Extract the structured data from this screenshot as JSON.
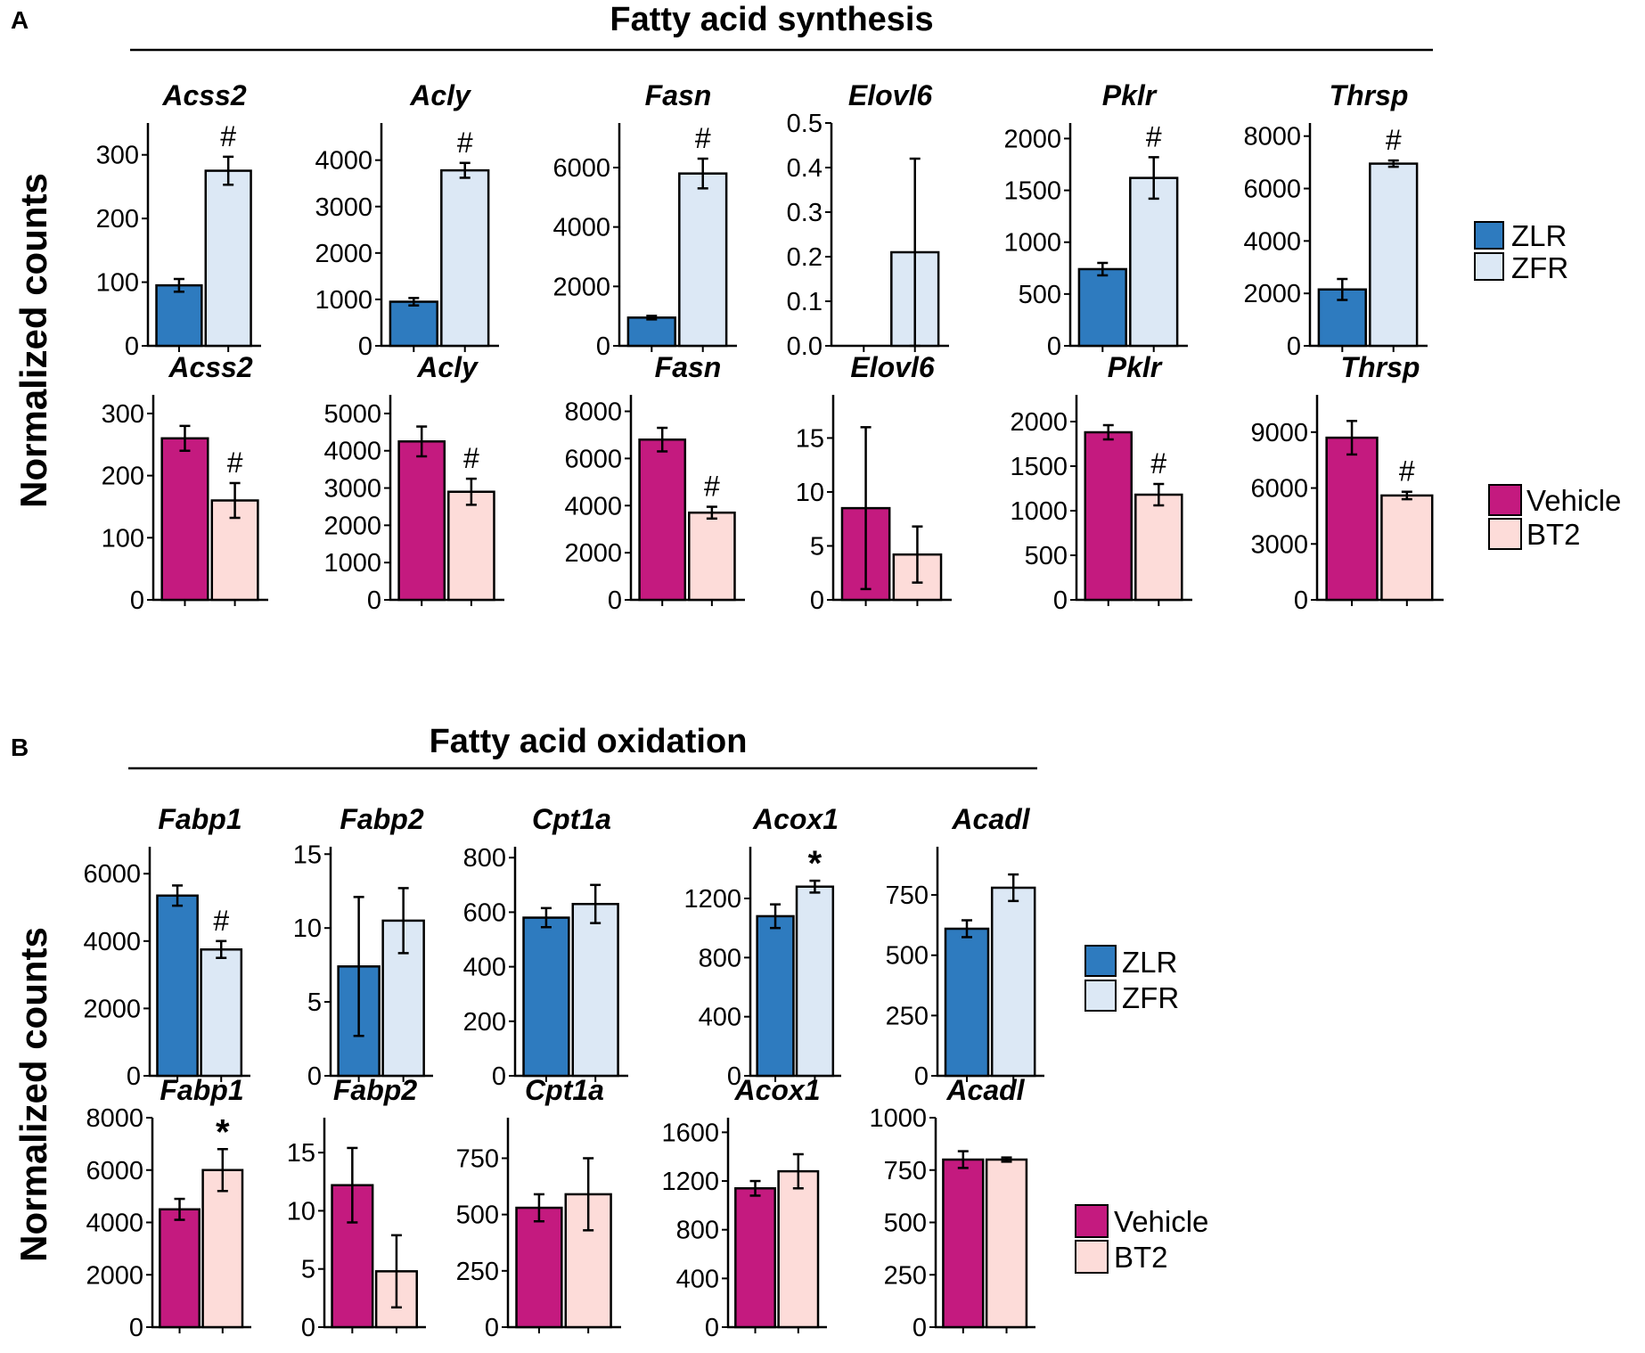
{
  "figure": {
    "panel_a_letter": "A",
    "panel_b_letter": "B",
    "panel_a_title": "Fatty acid synthesis",
    "panel_b_title": "Fatty acid oxidation",
    "y_axis_label": "Normalized counts",
    "legend_zucker": [
      "ZLR",
      "ZFR"
    ],
    "legend_treatment": [
      "Vehicle",
      "BT2"
    ]
  },
  "colors": {
    "ZLR": "#2e7bbf",
    "ZFR": "#dce8f5",
    "Vehicle": "#c41a7f",
    "BT2": "#fddcd9",
    "axis": "#000000"
  },
  "chart_data": [
    {
      "panel": "A",
      "row": "top",
      "type": "bar",
      "gene": "Acss2",
      "categories": [
        "ZLR",
        "ZFR"
      ],
      "values": [
        95,
        275
      ],
      "errors": [
        10,
        22
      ],
      "ylim": [
        0,
        350
      ],
      "yticks": [
        0,
        100,
        200,
        300
      ],
      "sig": "#",
      "sig_on": 1
    },
    {
      "panel": "A",
      "row": "top",
      "type": "bar",
      "gene": "Acly",
      "categories": [
        "ZLR",
        "ZFR"
      ],
      "values": [
        950,
        3780
      ],
      "errors": [
        80,
        160
      ],
      "ylim": [
        0,
        4800
      ],
      "yticks": [
        0,
        1000,
        2000,
        3000,
        4000
      ],
      "sig": "#",
      "sig_on": 1
    },
    {
      "panel": "A",
      "row": "top",
      "type": "bar",
      "gene": "Fasn",
      "categories": [
        "ZLR",
        "ZFR"
      ],
      "values": [
        950,
        5800
      ],
      "errors": [
        60,
        500
      ],
      "ylim": [
        0,
        7500
      ],
      "yticks": [
        0,
        2000,
        4000,
        6000
      ],
      "sig": "#",
      "sig_on": 1
    },
    {
      "panel": "A",
      "row": "top",
      "type": "bar",
      "gene": "Elovl6",
      "categories": [
        "ZLR",
        "ZFR"
      ],
      "values": [
        0,
        0.21
      ],
      "errors": [
        0,
        0.21
      ],
      "ylim": [
        0,
        0.5
      ],
      "yticks": [
        0.0,
        0.1,
        0.2,
        0.3,
        0.4,
        0.5
      ],
      "tick_labels": [
        "0.0",
        "0.1",
        "0.2",
        "0.3",
        "0.4",
        "0.5"
      ],
      "sig": "",
      "sig_on": -1
    },
    {
      "panel": "A",
      "row": "top",
      "type": "bar",
      "gene": "Pklr",
      "categories": [
        "ZLR",
        "ZFR"
      ],
      "values": [
        740,
        1620
      ],
      "errors": [
        60,
        200
      ],
      "ylim": [
        0,
        2150
      ],
      "yticks": [
        0,
        500,
        1000,
        1500,
        2000
      ],
      "sig": "#",
      "sig_on": 1
    },
    {
      "panel": "A",
      "row": "top",
      "type": "bar",
      "gene": "Thrsp",
      "categories": [
        "ZLR",
        "ZFR"
      ],
      "values": [
        2150,
        6950
      ],
      "errors": [
        400,
        120
      ],
      "ylim": [
        0,
        8500
      ],
      "yticks": [
        0,
        2000,
        4000,
        6000,
        8000
      ],
      "sig": "#",
      "sig_on": 1
    },
    {
      "panel": "A",
      "row": "bottom",
      "type": "bar",
      "gene": "Acss2",
      "categories": [
        "Vehicle",
        "BT2"
      ],
      "values": [
        260,
        160
      ],
      "errors": [
        20,
        28
      ],
      "ylim": [
        0,
        330
      ],
      "yticks": [
        0,
        100,
        200,
        300
      ],
      "sig": "#",
      "sig_on": 1
    },
    {
      "panel": "A",
      "row": "bottom",
      "type": "bar",
      "gene": "Acly",
      "categories": [
        "Vehicle",
        "BT2"
      ],
      "values": [
        4250,
        2900
      ],
      "errors": [
        400,
        350
      ],
      "ylim": [
        0,
        5500
      ],
      "yticks": [
        0,
        1000,
        2000,
        3000,
        4000,
        5000
      ],
      "sig": "#",
      "sig_on": 1
    },
    {
      "panel": "A",
      "row": "bottom",
      "type": "bar",
      "gene": "Fasn",
      "categories": [
        "Vehicle",
        "BT2"
      ],
      "values": [
        6800,
        3700
      ],
      "errors": [
        500,
        250
      ],
      "ylim": [
        0,
        8700
      ],
      "yticks": [
        0,
        2000,
        4000,
        6000,
        8000
      ],
      "sig": "#",
      "sig_on": 1
    },
    {
      "panel": "A",
      "row": "bottom",
      "type": "bar",
      "gene": "Elovl6",
      "categories": [
        "Vehicle",
        "BT2"
      ],
      "values": [
        8.5,
        4.2
      ],
      "errors": [
        7.5,
        2.6
      ],
      "ylim": [
        0,
        19
      ],
      "yticks": [
        0,
        5,
        10,
        15
      ],
      "sig": "",
      "sig_on": -1
    },
    {
      "panel": "A",
      "row": "bottom",
      "type": "bar",
      "gene": "Pklr",
      "categories": [
        "Vehicle",
        "BT2"
      ],
      "values": [
        1880,
        1180
      ],
      "errors": [
        80,
        120
      ],
      "ylim": [
        0,
        2300
      ],
      "yticks": [
        0,
        500,
        1000,
        1500,
        2000
      ],
      "sig": "#",
      "sig_on": 1
    },
    {
      "panel": "A",
      "row": "bottom",
      "type": "bar",
      "gene": "Thrsp",
      "categories": [
        "Vehicle",
        "BT2"
      ],
      "values": [
        8700,
        5600
      ],
      "errors": [
        900,
        200
      ],
      "ylim": [
        0,
        11000
      ],
      "yticks": [
        0,
        3000,
        6000,
        9000
      ],
      "sig": "#",
      "sig_on": 1
    },
    {
      "panel": "B",
      "row": "top",
      "type": "bar",
      "gene": "Fabp1",
      "categories": [
        "ZLR",
        "ZFR"
      ],
      "values": [
        5350,
        3750
      ],
      "errors": [
        300,
        250
      ],
      "ylim": [
        0,
        6800
      ],
      "yticks": [
        0,
        2000,
        4000,
        6000
      ],
      "sig": "#",
      "sig_on": 1
    },
    {
      "panel": "B",
      "row": "top",
      "type": "bar",
      "gene": "Fabp2",
      "categories": [
        "ZLR",
        "ZFR"
      ],
      "values": [
        7.4,
        10.5
      ],
      "errors": [
        4.7,
        2.2
      ],
      "ylim": [
        0,
        15.5
      ],
      "yticks": [
        0,
        5,
        10,
        15
      ],
      "sig": "",
      "sig_on": -1
    },
    {
      "panel": "B",
      "row": "top",
      "type": "bar",
      "gene": "Cpt1a",
      "categories": [
        "ZLR",
        "ZFR"
      ],
      "values": [
        580,
        630
      ],
      "errors": [
        35,
        70
      ],
      "ylim": [
        0,
        840
      ],
      "yticks": [
        0,
        200,
        400,
        600,
        800
      ],
      "sig": "",
      "sig_on": -1
    },
    {
      "panel": "B",
      "row": "top",
      "type": "bar",
      "gene": "Acox1",
      "categories": [
        "ZLR",
        "ZFR"
      ],
      "values": [
        1080,
        1280
      ],
      "errors": [
        80,
        40
      ],
      "ylim": [
        0,
        1550
      ],
      "yticks": [
        0,
        400,
        800,
        1200
      ],
      "sig": "*",
      "sig_on": 1
    },
    {
      "panel": "B",
      "row": "top",
      "type": "bar",
      "gene": "Acadl",
      "categories": [
        "ZLR",
        "ZFR"
      ],
      "values": [
        610,
        780
      ],
      "errors": [
        35,
        55
      ],
      "ylim": [
        0,
        950
      ],
      "yticks": [
        0,
        250,
        500,
        750
      ],
      "sig": "",
      "sig_on": -1
    },
    {
      "panel": "B",
      "row": "bottom",
      "type": "bar",
      "gene": "Fabp1",
      "categories": [
        "Vehicle",
        "BT2"
      ],
      "values": [
        4500,
        6000
      ],
      "errors": [
        400,
        800
      ],
      "ylim": [
        0,
        8000
      ],
      "yticks": [
        0,
        2000,
        4000,
        6000,
        8000
      ],
      "sig": "*",
      "sig_on": 1
    },
    {
      "panel": "B",
      "row": "bottom",
      "type": "bar",
      "gene": "Fabp2",
      "categories": [
        "Vehicle",
        "BT2"
      ],
      "values": [
        12.2,
        4.8
      ],
      "errors": [
        3.2,
        3.1
      ],
      "ylim": [
        0,
        18
      ],
      "yticks": [
        0,
        5,
        10,
        15
      ],
      "sig": "",
      "sig_on": -1
    },
    {
      "panel": "B",
      "row": "bottom",
      "type": "bar",
      "gene": "Cpt1a",
      "categories": [
        "Vehicle",
        "BT2"
      ],
      "values": [
        530,
        590
      ],
      "errors": [
        60,
        160
      ],
      "ylim": [
        0,
        930
      ],
      "yticks": [
        0,
        250,
        500,
        750
      ],
      "sig": "",
      "sig_on": -1
    },
    {
      "panel": "B",
      "row": "bottom",
      "type": "bar",
      "gene": "Acox1",
      "categories": [
        "Vehicle",
        "BT2"
      ],
      "values": [
        1140,
        1280
      ],
      "errors": [
        60,
        140
      ],
      "ylim": [
        0,
        1720
      ],
      "yticks": [
        0,
        400,
        800,
        1200,
        1600
      ],
      "sig": "",
      "sig_on": -1
    },
    {
      "panel": "B",
      "row": "bottom",
      "type": "bar",
      "gene": "Acadl",
      "categories": [
        "Vehicle",
        "BT2"
      ],
      "values": [
        800,
        800
      ],
      "errors": [
        40,
        10
      ],
      "ylim": [
        0,
        1000
      ],
      "yticks": [
        0,
        250,
        500,
        750,
        1000
      ],
      "sig": "",
      "sig_on": -1
    }
  ]
}
